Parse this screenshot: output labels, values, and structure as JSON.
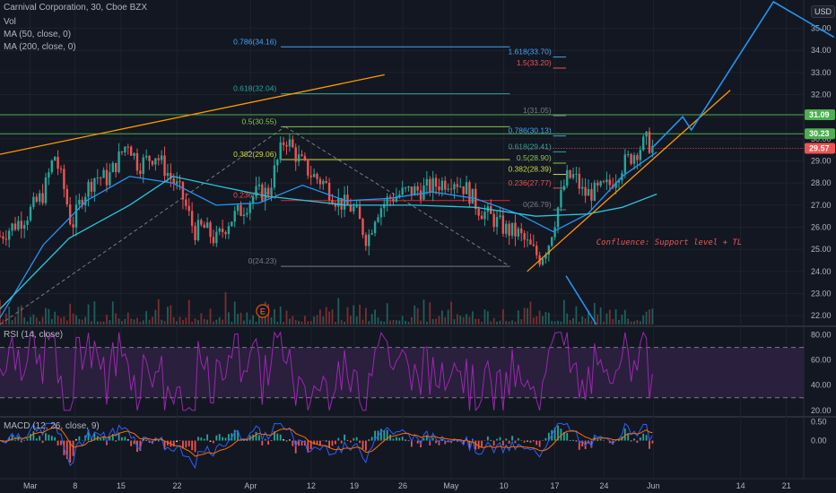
{
  "header": {
    "symbol": "Carnival Corporation, 30, Cboe BZX",
    "vol": "Vol",
    "ma50": "MA (50, close, 0)",
    "ma200": "MA (200, close, 0)",
    "currency": "USD"
  },
  "panels": {
    "rsi_label": "RSI (14, close)",
    "macd_label": "MACD (12, 26, close, 9)"
  },
  "colors": {
    "background": "#131722",
    "up": "#26a69a",
    "down": "#ef5350",
    "ma50": "#2196f3",
    "ma200": "#26c6da",
    "rsi": "#9c27b0",
    "projection": "#2196f3",
    "trendline": "#ff9800",
    "level": "#4caf50"
  },
  "chart_data": {
    "type": "candlestick",
    "y_axis": {
      "ylim": [
        21.6,
        36.2
      ],
      "ticks": [
        "35.00",
        "34.00",
        "33.00",
        "32.00",
        "31.00",
        "30.00",
        "29.00",
        "28.00",
        "27.00",
        "26.00",
        "25.00",
        "24.00",
        "23.00",
        "22.00"
      ]
    },
    "x_axis": {
      "ticks": [
        {
          "label": "Mar",
          "pos": 0.035
        },
        {
          "label": "8",
          "pos": 0.087
        },
        {
          "label": "15",
          "pos": 0.14
        },
        {
          "label": "22",
          "pos": 0.205
        },
        {
          "label": "Apr",
          "pos": 0.29
        },
        {
          "label": "12",
          "pos": 0.36
        },
        {
          "label": "19",
          "pos": 0.41
        },
        {
          "label": "26",
          "pos": 0.466
        },
        {
          "label": "May",
          "pos": 0.522
        },
        {
          "label": "10",
          "pos": 0.583
        },
        {
          "label": "17",
          "pos": 0.642
        },
        {
          "label": "24",
          "pos": 0.699
        },
        {
          "label": "Jun",
          "pos": 0.756
        },
        {
          "label": "14",
          "pos": 0.857
        },
        {
          "label": "21",
          "pos": 0.91
        }
      ]
    },
    "price_path": [
      [
        0.0,
        25.6
      ],
      [
        0.03,
        26.5
      ],
      [
        0.05,
        27.5
      ],
      [
        0.063,
        29.3
      ],
      [
        0.075,
        27.6
      ],
      [
        0.083,
        26.0
      ],
      [
        0.095,
        27.4
      ],
      [
        0.11,
        28.3
      ],
      [
        0.125,
        28.2
      ],
      [
        0.148,
        29.9
      ],
      [
        0.16,
        28.8
      ],
      [
        0.18,
        29.3
      ],
      [
        0.195,
        28.4
      ],
      [
        0.21,
        27.5
      ],
      [
        0.225,
        25.8
      ],
      [
        0.235,
        26.0
      ],
      [
        0.25,
        25.4
      ],
      [
        0.265,
        26.3
      ],
      [
        0.28,
        26.8
      ],
      [
        0.295,
        27.5
      ],
      [
        0.31,
        27.6
      ],
      [
        0.33,
        30.1
      ],
      [
        0.345,
        29.1
      ],
      [
        0.36,
        28.4
      ],
      [
        0.375,
        28.0
      ],
      [
        0.39,
        27.2
      ],
      [
        0.41,
        26.8
      ],
      [
        0.425,
        25.4
      ],
      [
        0.435,
        26.7
      ],
      [
        0.45,
        27.3
      ],
      [
        0.47,
        27.6
      ],
      [
        0.49,
        27.7
      ],
      [
        0.51,
        28.0
      ],
      [
        0.525,
        28.2
      ],
      [
        0.54,
        27.7
      ],
      [
        0.555,
        26.8
      ],
      [
        0.57,
        26.4
      ],
      [
        0.585,
        25.9
      ],
      [
        0.6,
        25.7
      ],
      [
        0.615,
        25.0
      ],
      [
        0.625,
        24.6
      ],
      [
        0.635,
        25.3
      ],
      [
        0.645,
        26.8
      ],
      [
        0.655,
        28.2
      ],
      [
        0.665,
        28.3
      ],
      [
        0.675,
        27.5
      ],
      [
        0.69,
        27.6
      ],
      [
        0.705,
        27.9
      ],
      [
        0.72,
        28.8
      ],
      [
        0.735,
        29.4
      ],
      [
        0.748,
        29.9
      ],
      [
        0.755,
        29.6
      ]
    ],
    "moving_averages": [
      {
        "name": "MA (50, close, 0)",
        "path": [
          [
            0.0,
            21.9
          ],
          [
            0.05,
            25.2
          ],
          [
            0.1,
            27.2
          ],
          [
            0.15,
            28.3
          ],
          [
            0.2,
            28.0
          ],
          [
            0.25,
            27.0
          ],
          [
            0.3,
            27.1
          ],
          [
            0.35,
            27.9
          ],
          [
            0.4,
            27.2
          ],
          [
            0.45,
            27.3
          ],
          [
            0.5,
            27.6
          ],
          [
            0.55,
            27.3
          ],
          [
            0.6,
            26.6
          ],
          [
            0.64,
            25.8
          ],
          [
            0.68,
            26.6
          ],
          [
            0.72,
            28.3
          ],
          [
            0.76,
            29.4
          ]
        ]
      },
      {
        "name": "MA (200, close, 0)",
        "path": [
          [
            0.0,
            22.3
          ],
          [
            0.08,
            25.5
          ],
          [
            0.15,
            27.0
          ],
          [
            0.2,
            28.3
          ],
          [
            0.26,
            27.8
          ],
          [
            0.31,
            27.4
          ],
          [
            0.4,
            27.0
          ],
          [
            0.48,
            27.0
          ],
          [
            0.55,
            26.9
          ],
          [
            0.62,
            26.5
          ],
          [
            0.68,
            26.6
          ],
          [
            0.72,
            26.9
          ],
          [
            0.76,
            27.5
          ]
        ]
      }
    ],
    "price_badges": [
      {
        "value": "31.09",
        "color": "#4caf50",
        "price": 31.09
      },
      {
        "value": "30.23",
        "color": "#4caf50",
        "price": 30.23
      },
      {
        "value": "29.57",
        "color": "#ef5350",
        "price": 29.57
      }
    ],
    "fib_retracement": [
      {
        "label": "0.786(34.16)",
        "color": "#42a5f5",
        "price": 34.16
      },
      {
        "label": "0.618(32.04)",
        "color": "#26a69a",
        "price": 32.04
      },
      {
        "label": "0.5(30.55)",
        "color": "#8bc34a",
        "price": 30.55
      },
      {
        "label": "0.382(29.06)",
        "color": "#cddc39",
        "price": 29.06
      },
      {
        "label": "0.236(27.21)",
        "color": "#ef5350",
        "price": 27.21
      },
      {
        "label": "0(24.23)",
        "color": "#787b86",
        "price": 24.23
      }
    ],
    "fib_extension": [
      {
        "label": "1.618(33.70)",
        "color": "#42a5f5",
        "price": 33.7
      },
      {
        "label": "1.5(33.20)",
        "color": "#ef5350",
        "price": 33.2
      },
      {
        "label": "1(31.05)",
        "color": "#787b86",
        "price": 31.05
      },
      {
        "label": "0.786(30.13)",
        "color": "#42a5f5",
        "price": 30.13
      },
      {
        "label": "0.618(29.41)",
        "color": "#26a69a",
        "price": 29.41
      },
      {
        "label": "0.5(28.90)",
        "color": "#8bc34a",
        "price": 28.9
      },
      {
        "label": "0.382(28.39)",
        "color": "#cddc39",
        "price": 28.39
      },
      {
        "label": "0.236(27.77)",
        "color": "#ef5350",
        "price": 27.77
      },
      {
        "label": "0(26.79)",
        "color": "#787b86",
        "price": 26.79
      }
    ],
    "annotation": "Confluence: Support level + TL",
    "event_marker": "E",
    "rsi": {
      "ticks": [
        "80.00",
        "60.00",
        "40.00",
        "20.00"
      ],
      "ylim": [
        17,
        84
      ],
      "upper": 70,
      "lower": 30
    },
    "macd": {
      "ticks": [
        "0.50",
        "0.00"
      ],
      "ylim": [
        -0.95,
        0.6
      ]
    }
  }
}
